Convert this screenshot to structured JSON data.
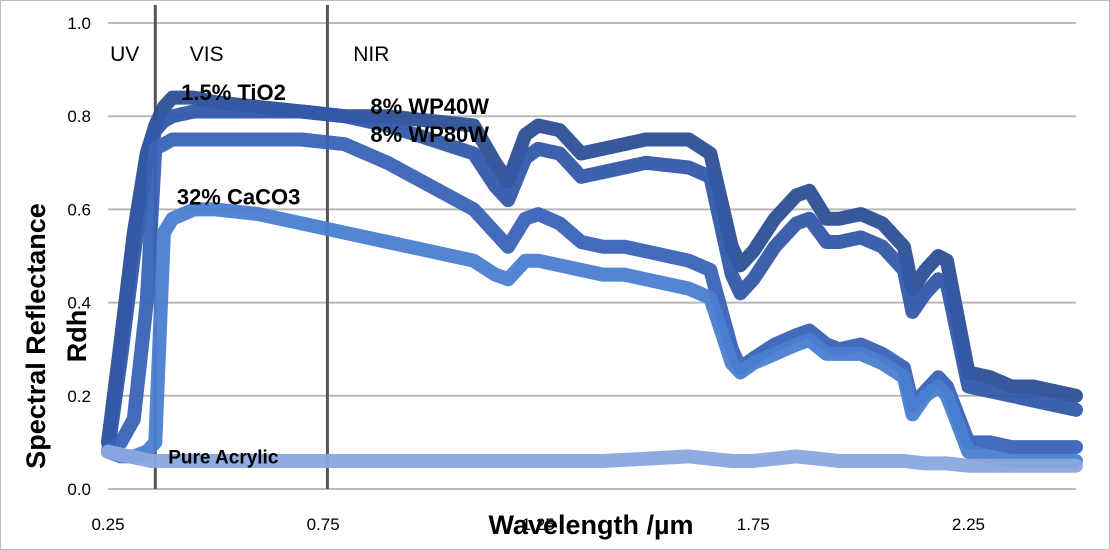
{
  "chart_data": {
    "type": "line",
    "xlabel": "Wavelength /µm",
    "ylabel_line1": "Spectral Reflectance",
    "ylabel_line2": "Rdh",
    "xlim": [
      0.25,
      2.5
    ],
    "ylim": [
      0.0,
      1.0
    ],
    "x_ticks": [
      0.25,
      0.75,
      1.25,
      1.75,
      2.25
    ],
    "x_tick_labels": [
      "0.25",
      "0.75",
      "1.25",
      "1.75",
      "2.25"
    ],
    "y_ticks": [
      0.0,
      0.2,
      0.4,
      0.6,
      0.8,
      1.0
    ],
    "y_tick_labels": [
      "0.0",
      "0.2",
      "0.4",
      "0.6",
      "0.8",
      "1.0"
    ],
    "grid": true,
    "regions": [
      {
        "label": "UV",
        "x_label": 0.255
      },
      {
        "label": "VIS",
        "x_label": 0.44
      },
      {
        "label": "NIR",
        "x_label": 0.82
      }
    ],
    "region_boundaries": [
      0.36,
      0.76
    ],
    "colors": {
      "tio2": "#2c4f95",
      "wp40w": "#3358a8",
      "wp80w": "#3a62b8",
      "caco3": "#4a7ed1",
      "acrylic": "#8aa6de",
      "grid": "#b8b8b8",
      "boundary": "#555555"
    },
    "series": [
      {
        "name": "1.5% TiO2",
        "color_key": "tio2",
        "x": [
          0.25,
          0.28,
          0.31,
          0.34,
          0.36,
          0.38,
          0.4,
          0.45,
          0.5,
          0.6,
          0.7,
          0.8,
          0.9,
          1.0,
          1.1,
          1.15,
          1.18,
          1.22,
          1.25,
          1.3,
          1.35,
          1.4,
          1.45,
          1.5,
          1.6,
          1.65,
          1.7,
          1.72,
          1.75,
          1.8,
          1.85,
          1.88,
          1.92,
          1.95,
          2.0,
          2.05,
          2.1,
          2.12,
          2.15,
          2.18,
          2.2,
          2.25,
          2.3,
          2.35,
          2.4,
          2.45,
          2.5
        ],
        "y": [
          0.1,
          0.32,
          0.55,
          0.72,
          0.78,
          0.82,
          0.84,
          0.84,
          0.83,
          0.82,
          0.81,
          0.8,
          0.8,
          0.79,
          0.78,
          0.7,
          0.66,
          0.76,
          0.78,
          0.77,
          0.72,
          0.73,
          0.74,
          0.75,
          0.75,
          0.72,
          0.52,
          0.48,
          0.51,
          0.58,
          0.63,
          0.64,
          0.58,
          0.58,
          0.59,
          0.57,
          0.52,
          0.43,
          0.47,
          0.5,
          0.49,
          0.25,
          0.24,
          0.22,
          0.22,
          0.21,
          0.2
        ]
      },
      {
        "name": "8% WP40W",
        "color_key": "wp40w",
        "x": [
          0.25,
          0.28,
          0.31,
          0.34,
          0.36,
          0.38,
          0.4,
          0.45,
          0.5,
          0.6,
          0.7,
          0.8,
          0.9,
          1.0,
          1.1,
          1.15,
          1.18,
          1.22,
          1.25,
          1.3,
          1.35,
          1.4,
          1.45,
          1.5,
          1.6,
          1.65,
          1.7,
          1.72,
          1.75,
          1.8,
          1.85,
          1.88,
          1.92,
          1.95,
          2.0,
          2.05,
          2.1,
          2.12,
          2.15,
          2.18,
          2.2,
          2.25,
          2.3,
          2.35,
          2.4,
          2.45,
          2.5
        ],
        "y": [
          0.08,
          0.28,
          0.5,
          0.7,
          0.77,
          0.79,
          0.8,
          0.81,
          0.81,
          0.81,
          0.81,
          0.8,
          0.78,
          0.75,
          0.72,
          0.65,
          0.62,
          0.71,
          0.73,
          0.72,
          0.67,
          0.68,
          0.69,
          0.7,
          0.69,
          0.67,
          0.46,
          0.42,
          0.45,
          0.52,
          0.57,
          0.58,
          0.53,
          0.53,
          0.54,
          0.52,
          0.47,
          0.38,
          0.42,
          0.45,
          0.44,
          0.22,
          0.21,
          0.2,
          0.19,
          0.18,
          0.17
        ]
      },
      {
        "name": "8% WP80W",
        "color_key": "wp80w",
        "x": [
          0.25,
          0.28,
          0.31,
          0.34,
          0.36,
          0.38,
          0.4,
          0.45,
          0.5,
          0.6,
          0.7,
          0.8,
          0.9,
          1.0,
          1.1,
          1.15,
          1.18,
          1.22,
          1.25,
          1.3,
          1.35,
          1.4,
          1.45,
          1.5,
          1.6,
          1.65,
          1.7,
          1.72,
          1.75,
          1.8,
          1.85,
          1.88,
          1.92,
          1.95,
          2.0,
          2.05,
          2.1,
          2.12,
          2.15,
          2.18,
          2.2,
          2.25,
          2.3,
          2.35,
          2.4,
          2.45,
          2.5
        ],
        "y": [
          0.08,
          0.1,
          0.15,
          0.4,
          0.73,
          0.74,
          0.75,
          0.75,
          0.75,
          0.75,
          0.75,
          0.74,
          0.7,
          0.65,
          0.6,
          0.55,
          0.52,
          0.58,
          0.59,
          0.57,
          0.53,
          0.52,
          0.52,
          0.51,
          0.49,
          0.47,
          0.3,
          0.26,
          0.28,
          0.31,
          0.33,
          0.34,
          0.31,
          0.3,
          0.31,
          0.29,
          0.26,
          0.18,
          0.21,
          0.24,
          0.22,
          0.1,
          0.1,
          0.09,
          0.09,
          0.09,
          0.09
        ]
      },
      {
        "name": "32% CaCO3",
        "color_key": "caco3",
        "x": [
          0.25,
          0.28,
          0.31,
          0.34,
          0.36,
          0.38,
          0.4,
          0.45,
          0.5,
          0.6,
          0.7,
          0.8,
          0.9,
          1.0,
          1.1,
          1.15,
          1.18,
          1.22,
          1.25,
          1.3,
          1.35,
          1.4,
          1.45,
          1.5,
          1.6,
          1.65,
          1.7,
          1.72,
          1.75,
          1.8,
          1.85,
          1.88,
          1.92,
          1.95,
          2.0,
          2.05,
          2.1,
          2.12,
          2.15,
          2.18,
          2.2,
          2.25,
          2.3,
          2.35,
          2.4,
          2.45,
          2.5
        ],
        "y": [
          0.08,
          0.07,
          0.07,
          0.08,
          0.1,
          0.55,
          0.58,
          0.6,
          0.6,
          0.59,
          0.57,
          0.55,
          0.53,
          0.51,
          0.49,
          0.46,
          0.45,
          0.49,
          0.49,
          0.48,
          0.47,
          0.46,
          0.46,
          0.45,
          0.43,
          0.41,
          0.27,
          0.25,
          0.27,
          0.29,
          0.31,
          0.32,
          0.29,
          0.29,
          0.29,
          0.27,
          0.24,
          0.16,
          0.2,
          0.22,
          0.2,
          0.08,
          0.07,
          0.06,
          0.06,
          0.06,
          0.06
        ]
      },
      {
        "name": "Pure Acrylic",
        "color_key": "acrylic",
        "x": [
          0.25,
          0.3,
          0.35,
          0.4,
          0.5,
          0.6,
          0.7,
          0.8,
          0.9,
          1.0,
          1.1,
          1.2,
          1.3,
          1.4,
          1.5,
          1.6,
          1.65,
          1.7,
          1.75,
          1.8,
          1.85,
          1.9,
          1.95,
          2.0,
          2.05,
          2.1,
          2.15,
          2.2,
          2.25,
          2.3,
          2.35,
          2.4,
          2.45,
          2.5
        ],
        "y": [
          0.08,
          0.07,
          0.06,
          0.06,
          0.06,
          0.06,
          0.06,
          0.06,
          0.06,
          0.06,
          0.06,
          0.06,
          0.06,
          0.06,
          0.065,
          0.07,
          0.065,
          0.06,
          0.06,
          0.065,
          0.07,
          0.065,
          0.06,
          0.06,
          0.06,
          0.06,
          0.055,
          0.055,
          0.05,
          0.05,
          0.05,
          0.05,
          0.05,
          0.05
        ]
      }
    ],
    "annotations": [
      {
        "text": "1.5% TiO2",
        "x": 0.42,
        "y": 0.835,
        "style": "ann"
      },
      {
        "text": "8% WP40W",
        "x": 0.86,
        "y": 0.805,
        "style": "ann"
      },
      {
        "text": "8% WP80W",
        "x": 0.86,
        "y": 0.745,
        "style": "ann"
      },
      {
        "text": "32% CaCO3",
        "x": 0.41,
        "y": 0.61,
        "style": "ann"
      },
      {
        "text": "Pure Acrylic",
        "x": 0.39,
        "y": 0.055,
        "style": "ann-small"
      }
    ]
  }
}
